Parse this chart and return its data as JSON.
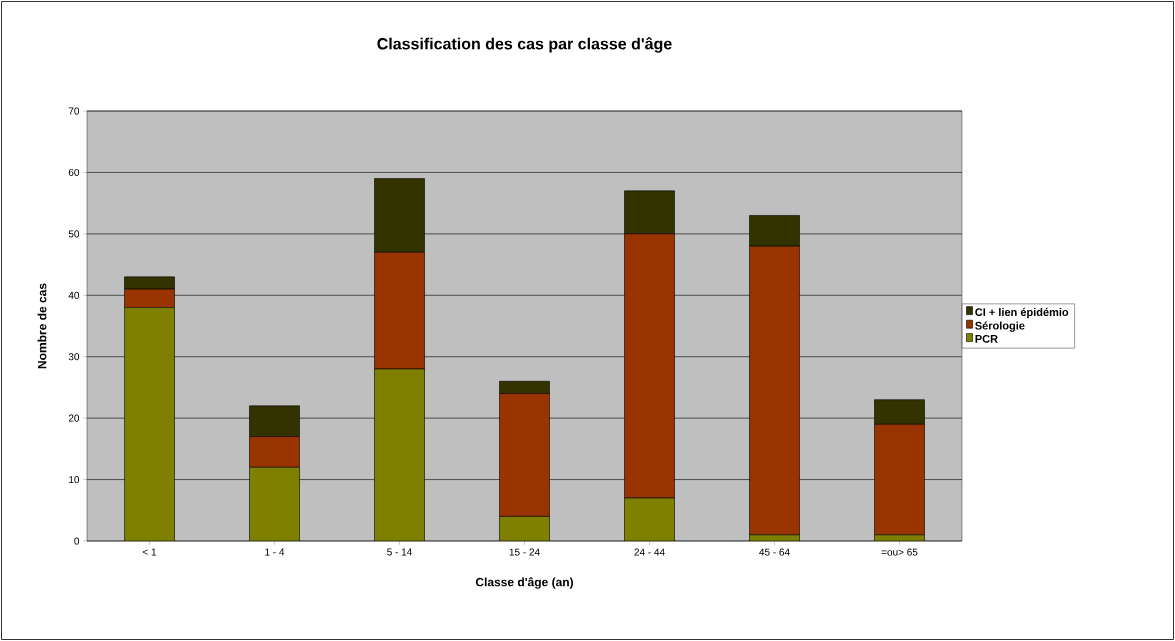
{
  "chart_data": {
    "type": "bar",
    "stacked": true,
    "title": "Classification des cas par classe d'âge",
    "xlabel": "Classe d'âge (an)",
    "ylabel": "Nombre de cas",
    "categories": [
      "< 1",
      "1 - 4",
      "5 - 14",
      "15 - 24",
      "24 - 44",
      "45 - 64",
      "=ou> 65"
    ],
    "series": [
      {
        "name": "PCR",
        "color": "#808000",
        "values": [
          38,
          12,
          28,
          4,
          7,
          1,
          1
        ]
      },
      {
        "name": "Sérologie",
        "color": "#993300",
        "values": [
          3,
          5,
          19,
          20,
          43,
          47,
          18
        ]
      },
      {
        "name": "CI + lien épidémio",
        "color": "#333300",
        "values": [
          2,
          5,
          12,
          2,
          7,
          5,
          4
        ]
      }
    ],
    "ylim": [
      0,
      70
    ],
    "yticks": [
      0,
      10,
      20,
      30,
      40,
      50,
      60,
      70
    ],
    "grid": "y",
    "legend": "right"
  }
}
